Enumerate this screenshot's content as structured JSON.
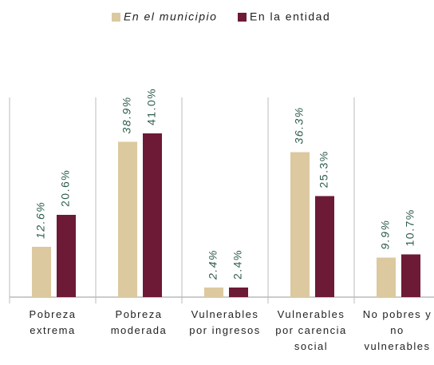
{
  "chart_data": {
    "type": "bar",
    "legend": "top",
    "categories": [
      "Pobreza\nextrema",
      "Pobreza\nmoderada",
      "Vulnerables\npor ingresos",
      "Vulnerables\npor carencia\nsocial",
      "No pobres y\nno\nvulnerables"
    ],
    "series": [
      {
        "name": "En el municipio",
        "color": "#dcc9a0",
        "values": [
          12.6,
          38.9,
          2.4,
          36.3,
          9.9
        ],
        "value_labels": [
          "12.6%",
          "38.9%",
          "2.4%",
          "36.3%",
          "9.9%"
        ]
      },
      {
        "name": "En la entidad",
        "color": "#6d1a36",
        "values": [
          20.6,
          41.0,
          2.4,
          25.3,
          10.7
        ],
        "value_labels": [
          "20.6%",
          "41.0%",
          "2.4%",
          "25.3%",
          "10.7%"
        ]
      }
    ],
    "label_color": "#2d5e4a",
    "ylim": [
      0,
      50
    ]
  }
}
